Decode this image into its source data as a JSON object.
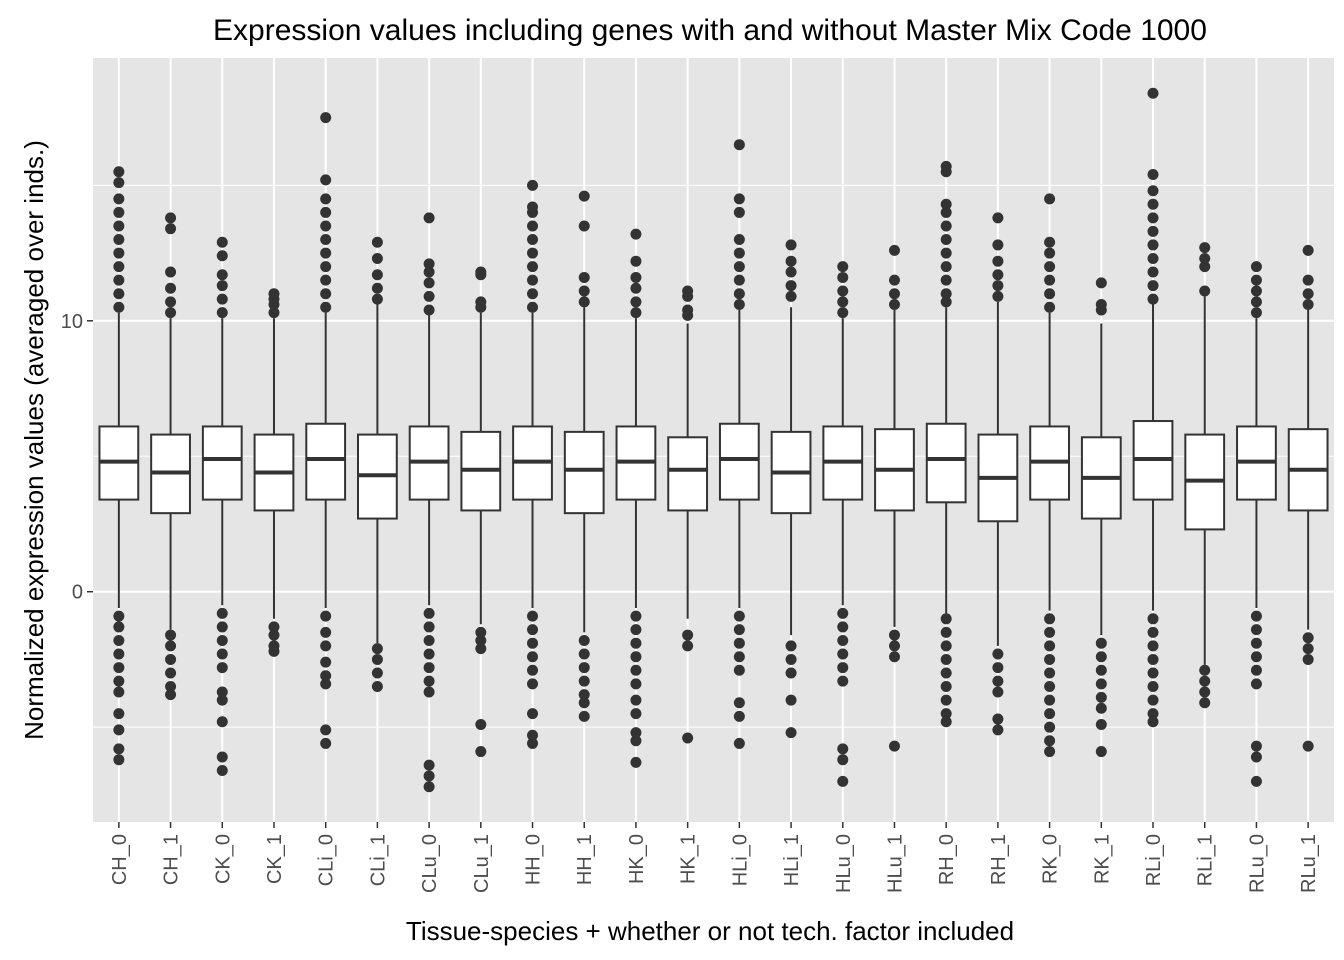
{
  "chart_data": {
    "type": "boxplot",
    "title": "Expression values including genes with and without Master Mix Code 1000",
    "xlabel": "Tissue-species + whether or not tech. factor included",
    "ylabel": "Normalized expression values (averaged over inds.)",
    "ylim": [
      -8.5,
      19.7
    ],
    "y_ticks": [
      0,
      10
    ],
    "y_minor_ticks": [
      -5,
      5,
      15
    ],
    "grid": true,
    "panel_background": "#e5e5e5",
    "grid_color": "#ffffff",
    "box_fill": "#ffffff",
    "line_color": "#333333",
    "outlier_color": "#333333",
    "categories": [
      "CH_0",
      "CH_1",
      "CK_0",
      "CK_1",
      "CLi_0",
      "CLi_1",
      "CLu_0",
      "CLu_1",
      "HH_0",
      "HH_1",
      "HK_0",
      "HK_1",
      "HLi_0",
      "HLi_1",
      "HLu_0",
      "HLu_1",
      "RH_0",
      "RH_1",
      "RK_0",
      "RK_1",
      "RLi_0",
      "RLi_1",
      "RLu_0",
      "RLu_1"
    ],
    "boxes": [
      {
        "label": "CH_0",
        "lower_whisker": -0.6,
        "q1": 3.4,
        "median": 4.8,
        "q3": 6.1,
        "upper_whisker": 10.3,
        "outliers_high": [
          10.5,
          11,
          11.5,
          12,
          12.5,
          13,
          13.5,
          14,
          14.5,
          15.1,
          15.5
        ],
        "outliers_low": [
          -0.9,
          -1.3,
          -1.8,
          -2.3,
          -2.8,
          -3.3,
          -3.7,
          -4.5,
          -5.1,
          -5.8,
          -6.2
        ]
      },
      {
        "label": "CH_1",
        "lower_whisker": -1.4,
        "q1": 2.9,
        "median": 4.4,
        "q3": 5.8,
        "upper_whisker": 10.1,
        "outliers_high": [
          10.3,
          10.7,
          11.2,
          11.8,
          13.4,
          13.8
        ],
        "outliers_low": [
          -1.6,
          -2.0,
          -2.5,
          -3.0,
          -3.5,
          -3.8
        ]
      },
      {
        "label": "CK_0",
        "lower_whisker": -0.5,
        "q1": 3.4,
        "median": 4.9,
        "q3": 6.1,
        "upper_whisker": 10.1,
        "outliers_high": [
          10.3,
          10.8,
          11.3,
          11.7,
          12.4,
          12.9
        ],
        "outliers_low": [
          -0.8,
          -1.3,
          -1.8,
          -2.3,
          -2.8,
          -3.7,
          -4.0,
          -4.8,
          -6.1,
          -6.6
        ]
      },
      {
        "label": "CK_1",
        "lower_whisker": -1.0,
        "q1": 3.0,
        "median": 4.4,
        "q3": 5.8,
        "upper_whisker": 10.1,
        "outliers_high": [
          10.3,
          10.6,
          10.8,
          11.0
        ],
        "outliers_low": [
          -1.3,
          -1.6,
          -2.0,
          -2.2
        ]
      },
      {
        "label": "CLi_0",
        "lower_whisker": -0.6,
        "q1": 3.4,
        "median": 4.9,
        "q3": 6.2,
        "upper_whisker": 10.3,
        "outliers_high": [
          10.5,
          11,
          11.5,
          12,
          12.5,
          13,
          13.5,
          14,
          14.5,
          15.2,
          17.5
        ],
        "outliers_low": [
          -0.9,
          -1.5,
          -2.0,
          -2.6,
          -3.1,
          -3.4,
          -5.1,
          -5.6
        ]
      },
      {
        "label": "CLi_1",
        "lower_whisker": -1.9,
        "q1": 2.7,
        "median": 4.3,
        "q3": 5.8,
        "upper_whisker": 10.6,
        "outliers_high": [
          10.8,
          11.2,
          11.7,
          12.3,
          12.9
        ],
        "outliers_low": [
          -2.1,
          -2.5,
          -3.0,
          -3.5
        ]
      },
      {
        "label": "CLu_0",
        "lower_whisker": -0.5,
        "q1": 3.4,
        "median": 4.8,
        "q3": 6.1,
        "upper_whisker": 10.2,
        "outliers_high": [
          10.4,
          10.9,
          11.4,
          11.8,
          12.1,
          13.8
        ],
        "outliers_low": [
          -0.8,
          -1.3,
          -1.8,
          -2.3,
          -2.8,
          -3.3,
          -3.7,
          -6.4,
          -6.8,
          -7.2
        ]
      },
      {
        "label": "CLu_1",
        "lower_whisker": -1.2,
        "q1": 3.0,
        "median": 4.5,
        "q3": 5.9,
        "upper_whisker": 10.3,
        "outliers_high": [
          10.5,
          10.7,
          11.7,
          11.8
        ],
        "outliers_low": [
          -1.5,
          -1.8,
          -2.1,
          -4.9,
          -5.9
        ]
      },
      {
        "label": "HH_0",
        "lower_whisker": -0.6,
        "q1": 3.4,
        "median": 4.8,
        "q3": 6.1,
        "upper_whisker": 10.3,
        "outliers_high": [
          10.5,
          11,
          11.5,
          12,
          12.5,
          13,
          13.5,
          14,
          14.2,
          15.0
        ],
        "outliers_low": [
          -0.9,
          -1.4,
          -1.9,
          -2.4,
          -2.9,
          -3.4,
          -4.5,
          -5.3,
          -5.6
        ]
      },
      {
        "label": "HH_1",
        "lower_whisker": -1.5,
        "q1": 2.9,
        "median": 4.5,
        "q3": 5.9,
        "upper_whisker": 10.5,
        "outliers_high": [
          10.7,
          11.1,
          11.6,
          13.5,
          14.6
        ],
        "outliers_low": [
          -1.8,
          -2.3,
          -2.8,
          -3.3,
          -3.8,
          -4.1,
          -4.6
        ]
      },
      {
        "label": "HK_0",
        "lower_whisker": -0.6,
        "q1": 3.4,
        "median": 4.8,
        "q3": 6.1,
        "upper_whisker": 10.1,
        "outliers_high": [
          10.3,
          10.7,
          11.2,
          11.6,
          12.2,
          13.2
        ],
        "outliers_low": [
          -0.9,
          -1.4,
          -1.9,
          -2.4,
          -2.9,
          -3.4,
          -4.0,
          -4.5,
          -5.2,
          -5.5,
          -6.3
        ]
      },
      {
        "label": "HK_1",
        "lower_whisker": -1.0,
        "q1": 3.0,
        "median": 4.5,
        "q3": 5.7,
        "upper_whisker": 9.9,
        "outliers_high": [
          10.2,
          10.4,
          10.9,
          11.1
        ],
        "outliers_low": [
          -1.6,
          -2.0,
          -5.4
        ]
      },
      {
        "label": "HLi_0",
        "lower_whisker": -0.6,
        "q1": 3.4,
        "median": 4.9,
        "q3": 6.2,
        "upper_whisker": 10.4,
        "outliers_high": [
          10.6,
          11,
          11.5,
          12,
          12.5,
          13,
          14,
          14.5,
          16.5
        ],
        "outliers_low": [
          -0.9,
          -1.4,
          -1.9,
          -2.4,
          -2.9,
          -4.1,
          -4.6,
          -5.6
        ]
      },
      {
        "label": "HLi_1",
        "lower_whisker": -1.6,
        "q1": 2.9,
        "median": 4.4,
        "q3": 5.9,
        "upper_whisker": 10.5,
        "outliers_high": [
          10.9,
          11.3,
          11.8,
          12.2,
          12.8
        ],
        "outliers_low": [
          -2.0,
          -2.5,
          -3.0,
          -4.0,
          -5.2
        ]
      },
      {
        "label": "HLu_0",
        "lower_whisker": -0.5,
        "q1": 3.4,
        "median": 4.8,
        "q3": 6.1,
        "upper_whisker": 10.1,
        "outliers_high": [
          10.3,
          10.7,
          11.1,
          11.6,
          12.0
        ],
        "outliers_low": [
          -0.8,
          -1.3,
          -1.8,
          -2.3,
          -2.8,
          -3.3,
          -5.8,
          -6.2,
          -7.0
        ]
      },
      {
        "label": "HLu_1",
        "lower_whisker": -1.3,
        "q1": 3.0,
        "median": 4.5,
        "q3": 6.0,
        "upper_whisker": 10.4,
        "outliers_high": [
          10.6,
          11.0,
          11.5,
          12.6
        ],
        "outliers_low": [
          -1.6,
          -2.0,
          -2.4,
          -5.7
        ]
      },
      {
        "label": "RH_0",
        "lower_whisker": -0.8,
        "q1": 3.3,
        "median": 4.9,
        "q3": 6.2,
        "upper_whisker": 10.5,
        "outliers_high": [
          10.7,
          11,
          11.5,
          12,
          12.5,
          13,
          13.5,
          14,
          14.3,
          15.5,
          15.7
        ],
        "outliers_low": [
          -1.0,
          -1.5,
          -2.0,
          -2.5,
          -3.0,
          -3.5,
          -4.0,
          -4.5,
          -4.8
        ]
      },
      {
        "label": "RH_1",
        "lower_whisker": -2.0,
        "q1": 2.6,
        "median": 4.2,
        "q3": 5.8,
        "upper_whisker": 10.7,
        "outliers_high": [
          10.9,
          11.3,
          11.7,
          12.2,
          12.8,
          13.8
        ],
        "outliers_low": [
          -2.3,
          -2.8,
          -3.3,
          -3.7,
          -4.7,
          -5.1
        ]
      },
      {
        "label": "RK_0",
        "lower_whisker": -0.7,
        "q1": 3.4,
        "median": 4.8,
        "q3": 6.1,
        "upper_whisker": 10.3,
        "outliers_high": [
          10.5,
          11,
          11.5,
          12,
          12.5,
          12.9,
          14.5
        ],
        "outliers_low": [
          -1.0,
          -1.5,
          -2.0,
          -2.5,
          -3.0,
          -3.5,
          -4.0,
          -4.5,
          -5.0,
          -5.5,
          -5.9
        ]
      },
      {
        "label": "RK_1",
        "lower_whisker": -1.6,
        "q1": 2.7,
        "median": 4.2,
        "q3": 5.7,
        "upper_whisker": 9.9,
        "outliers_high": [
          10.4,
          10.6,
          11.4
        ],
        "outliers_low": [
          -1.9,
          -2.4,
          -2.9,
          -3.4,
          -3.9,
          -4.3,
          -4.9,
          -5.9
        ]
      },
      {
        "label": "RLi_0",
        "lower_whisker": -0.7,
        "q1": 3.4,
        "median": 4.9,
        "q3": 6.3,
        "upper_whisker": 10.6,
        "outliers_high": [
          10.8,
          11.3,
          11.8,
          12.3,
          12.8,
          13.3,
          13.8,
          14.3,
          14.8,
          15.4,
          18.4
        ],
        "outliers_low": [
          -1.0,
          -1.5,
          -2.0,
          -2.5,
          -3.0,
          -3.5,
          -4.0,
          -4.5,
          -4.8
        ]
      },
      {
        "label": "RLi_1",
        "lower_whisker": -2.7,
        "q1": 2.3,
        "median": 4.1,
        "q3": 5.8,
        "upper_whisker": 10.9,
        "outliers_high": [
          11.1,
          12.0,
          12.3,
          12.7
        ],
        "outliers_low": [
          -2.9,
          -3.3,
          -3.7,
          -4.1
        ]
      },
      {
        "label": "RLu_0",
        "lower_whisker": -0.6,
        "q1": 3.4,
        "median": 4.8,
        "q3": 6.1,
        "upper_whisker": 10.1,
        "outliers_high": [
          10.3,
          10.7,
          11.1,
          11.5,
          12.0
        ],
        "outliers_low": [
          -0.9,
          -1.4,
          -1.9,
          -2.4,
          -2.9,
          -3.4,
          -5.7,
          -6.1,
          -7.0
        ]
      },
      {
        "label": "RLu_1",
        "lower_whisker": -1.4,
        "q1": 3.0,
        "median": 4.5,
        "q3": 6.0,
        "upper_whisker": 10.4,
        "outliers_high": [
          10.6,
          11.0,
          11.5,
          12.6
        ],
        "outliers_low": [
          -1.7,
          -2.1,
          -2.5,
          -5.7
        ]
      }
    ]
  }
}
